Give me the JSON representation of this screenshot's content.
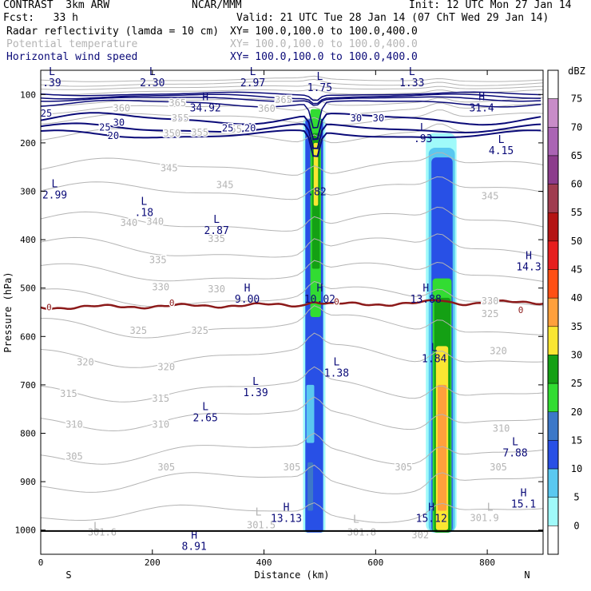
{
  "header": {
    "left_line1": "CONTRAST  3km ARW",
    "center_line1": "NCAR/MMM",
    "init": "Init: 12 UTC Mon 27 Jan 14",
    "fcst": "Fcst:   33 h",
    "valid": "Valid: 21 UTC Tue 28 Jan 14 (07 ChT Wed 29 Jan 14)",
    "field1": "Radar reflectivity (lamda = 10 cm)",
    "field1_xy": "XY= 100.0,100.0 to 100.0,400.0",
    "field2": "Potential temperature",
    "field2_xy": "XY= 100.0,100.0 to 100.0,400.0",
    "field3": "Horizontal wind speed",
    "field3_xy": "XY= 100.0,100.0 to 100.0,400.0"
  },
  "colors": {
    "theta": "#b4b4b4",
    "wind": "#0a0a78",
    "freezing": "#8c1a1a",
    "text": "#000000"
  },
  "chart_data": {
    "type": "cross-section",
    "title": "Radar reflectivity / Potential temperature / Horizontal wind speed",
    "xlabel": "Distance (km)",
    "ylabel": "Pressure (hPa)",
    "xlim": [
      0,
      900
    ],
    "ylim": [
      1050,
      50
    ],
    "x_ticks": [
      0,
      200,
      400,
      600,
      800
    ],
    "y_ticks": [
      100,
      200,
      300,
      400,
      500,
      600,
      700,
      800,
      900,
      1000
    ],
    "x_end_labels": {
      "left": "S",
      "right": "N"
    },
    "colorbar": {
      "unit": "dBZ",
      "levels": [
        0,
        5,
        10,
        15,
        20,
        25,
        30,
        35,
        40,
        45,
        50,
        55,
        60,
        65,
        70,
        75
      ],
      "colors": [
        "#ffffff",
        "#a0fafa",
        "#5ac8f0",
        "#2850e6",
        "#3c78c8",
        "#32dc32",
        "#14a014",
        "#fae632",
        "#ffa03c",
        "#ff5014",
        "#e61e1e",
        "#b41414",
        "#a03c50",
        "#8c3c8c",
        "#aa64b4",
        "#c88cc8",
        "#ffffff"
      ]
    },
    "wind_labels": [
      {
        "x": 10,
        "p": 139,
        "text": "25"
      },
      {
        "x": 140,
        "p": 158,
        "text": "30"
      },
      {
        "x": 130,
        "p": 185,
        "text": "20"
      },
      {
        "x": 115,
        "p": 168,
        "text": "25"
      },
      {
        "x": 335,
        "p": 170,
        "text": "25"
      },
      {
        "x": 375,
        "p": 170,
        "text": "20"
      },
      {
        "x": 565,
        "p": 149,
        "text": "30"
      },
      {
        "x": 605,
        "p": 149,
        "text": "30"
      }
    ],
    "theta_labels": [
      {
        "x": 145,
        "p": 128,
        "text": "360"
      },
      {
        "x": 245,
        "p": 118,
        "text": "365"
      },
      {
        "x": 405,
        "p": 129,
        "text": "360"
      },
      {
        "x": 435,
        "p": 111,
        "text": "365"
      },
      {
        "x": 250,
        "p": 149,
        "text": "355"
      },
      {
        "x": 285,
        "p": 179,
        "text": "355"
      },
      {
        "x": 235,
        "p": 180,
        "text": "350"
      },
      {
        "x": 345,
        "p": 172,
        "text": "355"
      },
      {
        "x": 330,
        "p": 287,
        "text": "345"
      },
      {
        "x": 230,
        "p": 252,
        "text": "345"
      },
      {
        "x": 805,
        "p": 310,
        "text": "345"
      },
      {
        "x": 158,
        "p": 365,
        "text": "340"
      },
      {
        "x": 205,
        "p": 363,
        "text": "340"
      },
      {
        "x": 315,
        "p": 398,
        "text": "335"
      },
      {
        "x": 210,
        "p": 442,
        "text": "335"
      },
      {
        "x": 215,
        "p": 498,
        "text": "330"
      },
      {
        "x": 315,
        "p": 502,
        "text": "330"
      },
      {
        "x": 805,
        "p": 527,
        "text": "330"
      },
      {
        "x": 175,
        "p": 588,
        "text": "325"
      },
      {
        "x": 285,
        "p": 588,
        "text": "325"
      },
      {
        "x": 805,
        "p": 553,
        "text": "325"
      },
      {
        "x": 80,
        "p": 653,
        "text": "320"
      },
      {
        "x": 225,
        "p": 663,
        "text": "320"
      },
      {
        "x": 820,
        "p": 630,
        "text": "320"
      },
      {
        "x": 50,
        "p": 718,
        "text": "315"
      },
      {
        "x": 215,
        "p": 728,
        "text": "315"
      },
      {
        "x": 60,
        "p": 782,
        "text": "310"
      },
      {
        "x": 215,
        "p": 782,
        "text": "310"
      },
      {
        "x": 825,
        "p": 790,
        "text": "310"
      },
      {
        "x": 60,
        "p": 848,
        "text": "305"
      },
      {
        "x": 225,
        "p": 870,
        "text": "305"
      },
      {
        "x": 650,
        "p": 870,
        "text": "305"
      },
      {
        "x": 820,
        "p": 870,
        "text": "305"
      },
      {
        "x": 450,
        "p": 870,
        "text": "305"
      },
      {
        "x": 110,
        "p": 1005,
        "text": "301.6"
      },
      {
        "x": 395,
        "p": 990,
        "text": "301.5"
      },
      {
        "x": 575,
        "p": 1005,
        "text": "301.8"
      },
      {
        "x": 680,
        "p": 1010,
        "text": "302"
      },
      {
        "x": 795,
        "p": 975,
        "text": "301.9"
      }
    ],
    "freezing_label": {
      "x": 15,
      "p": 539,
      "text": "0"
    },
    "freezing_label_2": {
      "x": 235,
      "p": 530,
      "text": "0"
    },
    "freezing_label_3": {
      "x": 530,
      "p": 528,
      "text": "0"
    },
    "freezing_label_4": {
      "x": 860,
      "p": 545,
      "text": "0"
    },
    "extrema": [
      {
        "x": 20,
        "p": 60,
        "sym": "L",
        "val": ".39",
        "color": "navy"
      },
      {
        "x": 200,
        "p": 60,
        "sym": "L",
        "val": "2.30",
        "color": "navy"
      },
      {
        "x": 380,
        "p": 60,
        "sym": "L",
        "val": "2.97",
        "color": "navy"
      },
      {
        "x": 500,
        "p": 70,
        "sym": "L",
        "val": "1.75",
        "color": "navy"
      },
      {
        "x": 665,
        "p": 60,
        "sym": "L",
        "val": "1.33",
        "color": "navy"
      },
      {
        "x": 295,
        "p": 112,
        "sym": "H",
        "val": "34.92",
        "color": "navy"
      },
      {
        "x": 790,
        "p": 112,
        "sym": "H",
        "val": "31.4",
        "color": "navy"
      },
      {
        "x": 685,
        "p": 175,
        "sym": "L",
        "val": ".93",
        "color": "navy"
      },
      {
        "x": 825,
        "p": 200,
        "sym": "L",
        "val": "4.15",
        "color": "navy"
      },
      {
        "x": 495,
        "p": 285,
        "sym": "",
        "val": ".82",
        "color": "navy"
      },
      {
        "x": 25,
        "p": 292,
        "sym": "L",
        "val": "2.99",
        "color": "navy"
      },
      {
        "x": 185,
        "p": 328,
        "sym": "L",
        "val": ".18",
        "color": "navy"
      },
      {
        "x": 315,
        "p": 365,
        "sym": "L",
        "val": "2.87",
        "color": "navy"
      },
      {
        "x": 880,
        "p": 440,
        "sym": "H",
        "val": "14.3",
        "color": "navy"
      },
      {
        "x": 370,
        "p": 507,
        "sym": "H",
        "val": "9.00",
        "color": "navy"
      },
      {
        "x": 500,
        "p": 507,
        "sym": "H",
        "val": "10.02",
        "color": "navy"
      },
      {
        "x": 690,
        "p": 507,
        "sym": "H",
        "val": "13.88",
        "color": "navy"
      },
      {
        "x": 705,
        "p": 630,
        "sym": "L",
        "val": "1.84",
        "color": "navy"
      },
      {
        "x": 530,
        "p": 660,
        "sym": "L",
        "val": "1.38",
        "color": "navy"
      },
      {
        "x": 385,
        "p": 700,
        "sym": "L",
        "val": "1.39",
        "color": "navy"
      },
      {
        "x": 295,
        "p": 752,
        "sym": "L",
        "val": "2.65",
        "color": "navy"
      },
      {
        "x": 850,
        "p": 825,
        "sym": "L",
        "val": "7.88",
        "color": "navy"
      },
      {
        "x": 865,
        "p": 930,
        "sym": "H",
        "val": "15.1",
        "color": "navy"
      },
      {
        "x": 440,
        "p": 960,
        "sym": "H",
        "val": "13.13",
        "color": "navy"
      },
      {
        "x": 700,
        "p": 960,
        "sym": "H",
        "val": "15.12",
        "color": "navy"
      },
      {
        "x": 275,
        "p": 1018,
        "sym": "H",
        "val": "8.91",
        "color": "navy"
      },
      {
        "x": 100,
        "p": 1000,
        "sym": "L",
        "val": "",
        "color": "grey"
      },
      {
        "x": 390,
        "p": 970,
        "sym": "L",
        "val": "",
        "color": "grey"
      },
      {
        "x": 565,
        "p": 985,
        "sym": "L",
        "val": "",
        "color": "grey"
      },
      {
        "x": 805,
        "p": 960,
        "sym": "L",
        "val": "",
        "color": "grey"
      }
    ],
    "ground_pressure_hpa": 1002
  }
}
